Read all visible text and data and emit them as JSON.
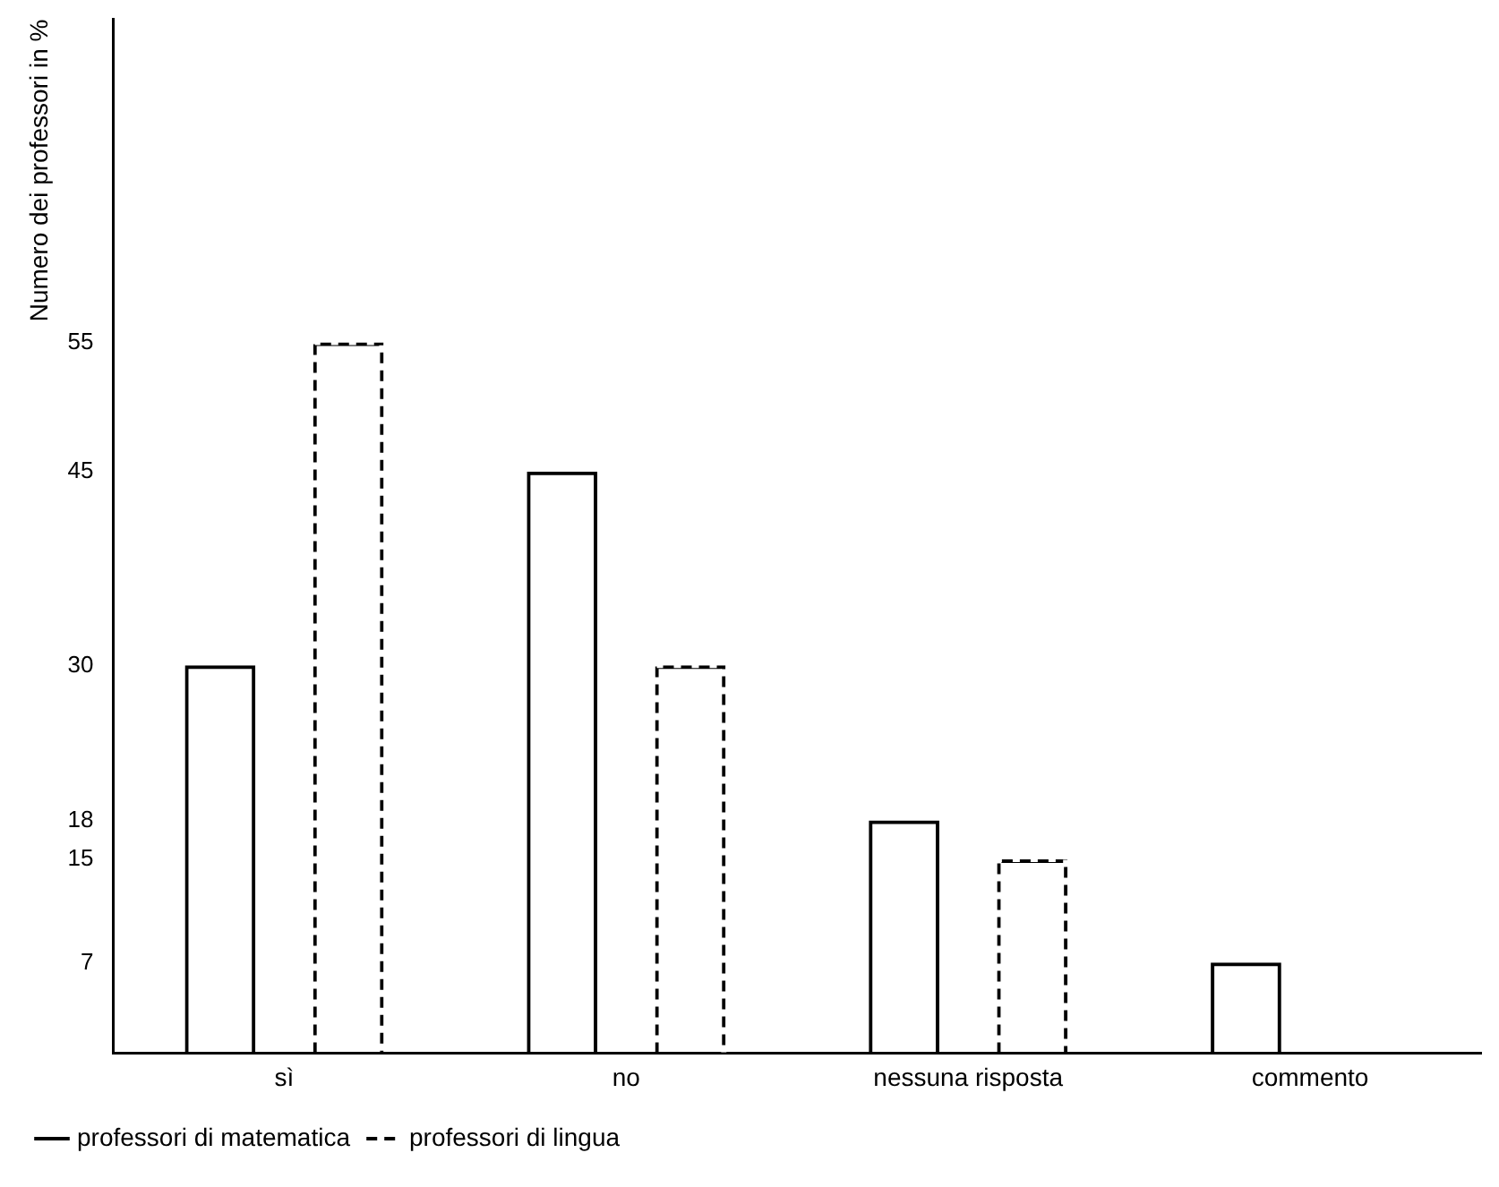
{
  "chart_data": {
    "type": "bar",
    "ylabel": "Numero dei professori in %",
    "categories": [
      "sì",
      "no",
      "nessuna risposta",
      "commento"
    ],
    "series": [
      {
        "name": "professori di matematica",
        "color": "#000000",
        "line_style": "solid",
        "values": [
          30,
          45,
          18,
          7
        ]
      },
      {
        "name": "professori di lingua",
        "color": "#000000",
        "line_style": "dashed",
        "values": [
          55,
          30,
          15,
          null
        ]
      }
    ],
    "ylim": [
      0,
      80
    ],
    "yticks": [
      7,
      15,
      18,
      30,
      45,
      55
    ],
    "grid": false,
    "legend": "bottom"
  }
}
